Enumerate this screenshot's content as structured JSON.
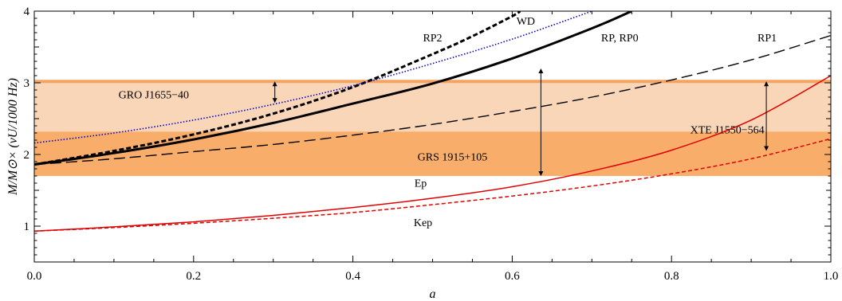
{
  "chart_data": {
    "type": "line",
    "xlabel": "a",
    "ylabel": "M/M⊙× (νU/1000 Hz)",
    "xlim": [
      0,
      1
    ],
    "ylim": [
      0.5,
      4
    ],
    "x_ticks": [
      0.0,
      0.2,
      0.4,
      0.6,
      0.8,
      1.0
    ],
    "x_tick_labels": [
      "0.0",
      "0.2",
      "0.4",
      "0.6",
      "0.8",
      "1.0"
    ],
    "y_ticks": [
      1,
      2,
      3,
      4
    ],
    "y_tick_labels": [
      "1",
      "2",
      "3",
      "4"
    ],
    "grid": false,
    "bands": [
      {
        "name": "GRO J1655−40",
        "y": [
          2.72,
          3.02
        ],
        "color": "#fcebe0"
      },
      {
        "name": "XTE J1550−564",
        "y": [
          2.32,
          3.02
        ],
        "color": "#fad6b8"
      },
      {
        "name": "GRS 1915+105",
        "y": [
          1.7,
          2.32
        ],
        "color": "#f9ad6a"
      }
    ],
    "top_line": {
      "y": 3.02,
      "color": "#f4a460"
    },
    "series": [
      {
        "name": "RP, RP0",
        "style": "solid-thick",
        "color": "#000000",
        "x": [
          0,
          0.1,
          0.2,
          0.3,
          0.4,
          0.5,
          0.6,
          0.7,
          0.75
        ],
        "y": [
          1.86,
          2.02,
          2.21,
          2.44,
          2.71,
          2.99,
          3.34,
          3.76,
          4.0
        ]
      },
      {
        "name": "RP2",
        "style": "dashed-thick",
        "color": "#000000",
        "x": [
          0,
          0.1,
          0.2,
          0.3,
          0.4,
          0.5,
          0.55,
          0.6,
          0.61
        ],
        "y": [
          1.86,
          2.05,
          2.28,
          2.57,
          2.94,
          3.4,
          3.65,
          3.93,
          4.0
        ]
      },
      {
        "name": "WD",
        "style": "dotted",
        "color": "#0000cc",
        "x": [
          0,
          0.1,
          0.2,
          0.3,
          0.4,
          0.5,
          0.6,
          0.7
        ],
        "y": [
          2.16,
          2.3,
          2.48,
          2.7,
          2.96,
          3.27,
          3.61,
          4.0
        ]
      },
      {
        "name": "RP1",
        "style": "long-dash",
        "color": "#000000",
        "x": [
          0,
          0.1,
          0.2,
          0.3,
          0.4,
          0.5,
          0.6,
          0.7,
          0.8,
          0.9,
          1.0
        ],
        "y": [
          1.86,
          1.94,
          2.04,
          2.14,
          2.27,
          2.42,
          2.6,
          2.8,
          3.04,
          3.32,
          3.66
        ]
      },
      {
        "name": "Ep",
        "style": "solid",
        "color": "#e00000",
        "x": [
          0,
          0.1,
          0.2,
          0.3,
          0.4,
          0.5,
          0.6,
          0.7,
          0.8,
          0.9,
          1.0
        ],
        "y": [
          0.93,
          0.99,
          1.06,
          1.15,
          1.26,
          1.39,
          1.55,
          1.77,
          2.06,
          2.48,
          3.1
        ]
      },
      {
        "name": "Kep",
        "style": "dashed",
        "color": "#e00000",
        "x": [
          0,
          0.1,
          0.2,
          0.3,
          0.4,
          0.5,
          0.6,
          0.7,
          0.8,
          0.9,
          1.0
        ],
        "y": [
          0.93,
          0.98,
          1.04,
          1.11,
          1.19,
          1.3,
          1.42,
          1.56,
          1.73,
          1.94,
          2.22
        ]
      }
    ],
    "series_labels": [
      {
        "text": "RP2",
        "x": 0.5,
        "y": 3.58
      },
      {
        "text": "WD",
        "x": 0.617,
        "y": 3.81
      },
      {
        "text": "RP, RP0",
        "x": 0.735,
        "y": 3.58
      },
      {
        "text": "RP1",
        "x": 0.92,
        "y": 3.58
      },
      {
        "text": "Ep",
        "x": 0.485,
        "y": 1.55
      },
      {
        "text": "Kep",
        "x": 0.488,
        "y": 1.0
      }
    ],
    "annotations": [
      {
        "text": "GRO J1655−40",
        "x": 0.15,
        "y": 2.84,
        "arrow": {
          "x": 0.302,
          "y1": 2.72,
          "y2": 3.02
        }
      },
      {
        "text": "XTE J1550−564",
        "x": 0.87,
        "y": 2.35,
        "arrow": {
          "x": 0.919,
          "y1": 2.05,
          "y2": 3.02
        }
      },
      {
        "text": "GRS 1915+105",
        "x": 0.525,
        "y": 1.97,
        "arrow": {
          "x": 0.636,
          "y1": 1.7,
          "y2": 3.2
        }
      }
    ]
  }
}
